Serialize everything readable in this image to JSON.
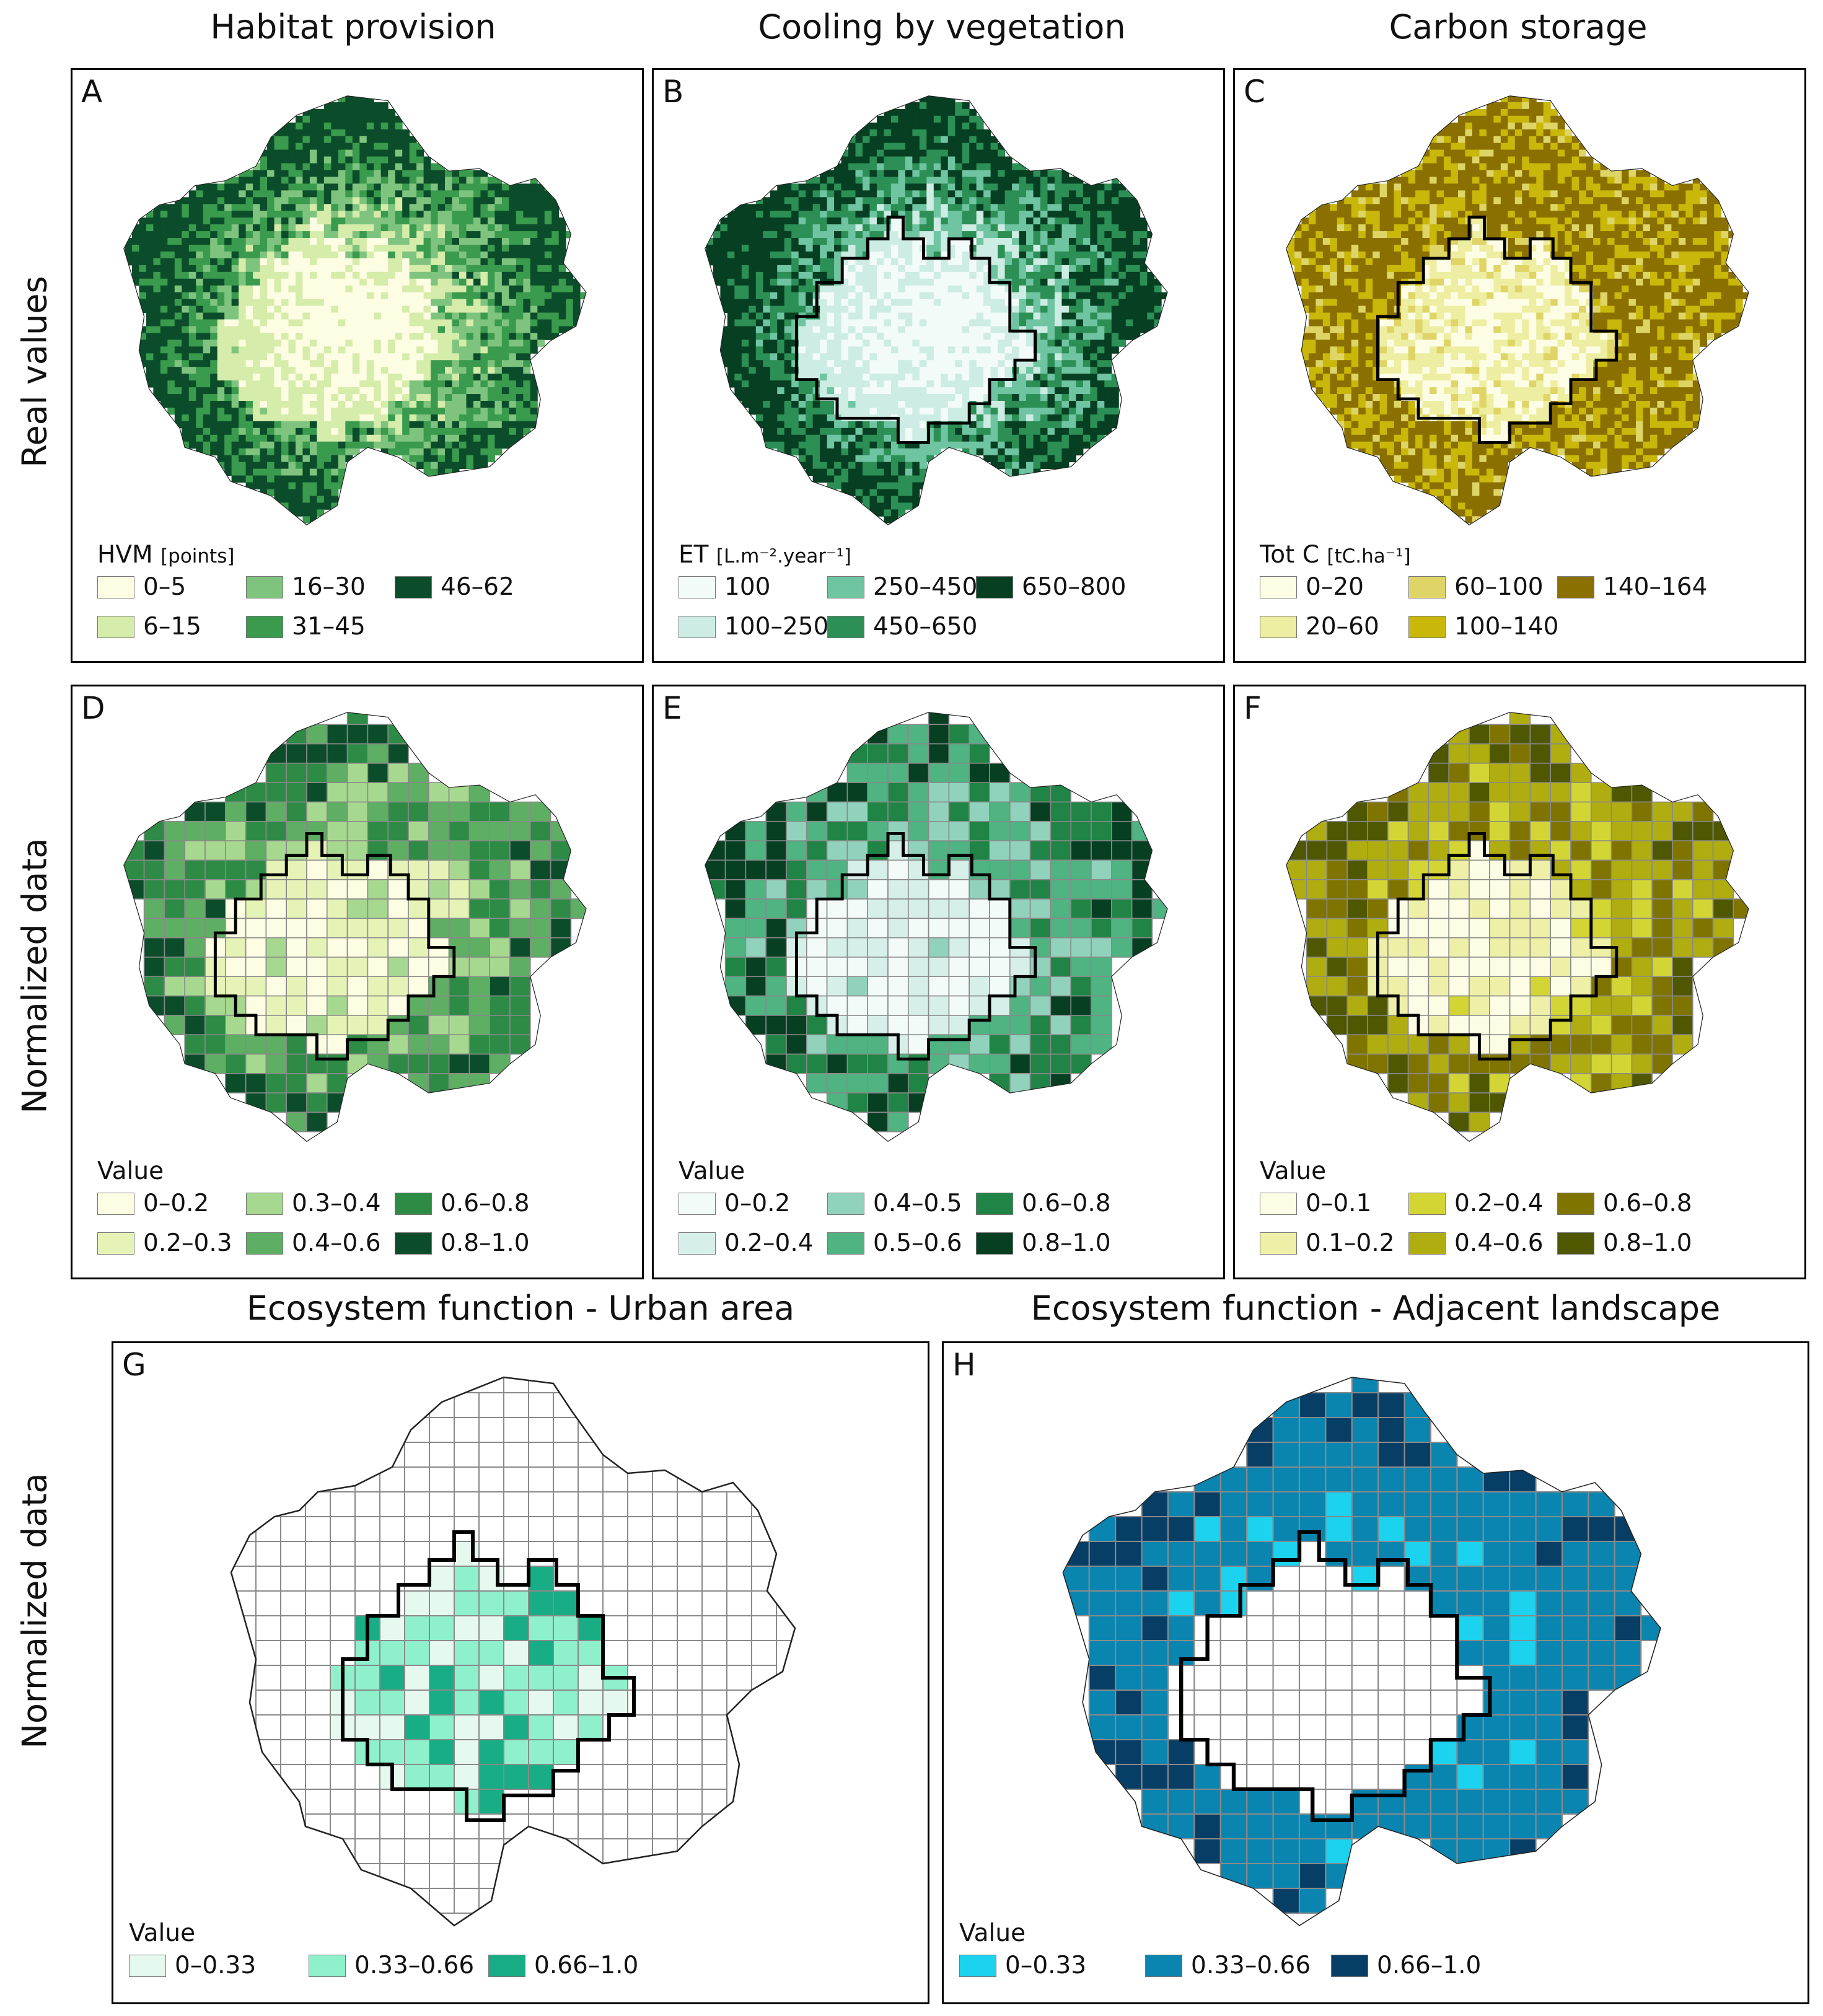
{
  "column_titles": [
    "Habitat provision",
    "Cooling by vegetation",
    "Carbon storage"
  ],
  "row_labels": [
    "Real values",
    "Normalized data",
    "Normalized data"
  ],
  "bottom_titles": [
    "Ecosystem function - Urban area",
    "Ecosystem function - Adjacent landscape"
  ],
  "panels": [
    {
      "letter": "A",
      "legend_title": "HVM",
      "legend_unit": "[points]",
      "boundary": false,
      "grid": false,
      "items": [
        {
          "label": "0–5",
          "color": "#fcfde2"
        },
        {
          "label": "6–15",
          "color": "#d6ecaa"
        },
        {
          "label": "16–30",
          "color": "#7fc47e"
        },
        {
          "label": "31–45",
          "color": "#3a9a4d"
        },
        {
          "label": "46–62",
          "color": "#0b4d2a"
        }
      ]
    },
    {
      "letter": "B",
      "legend_title": "ET",
      "legend_unit": "[L.m⁻².year⁻¹]",
      "boundary": true,
      "grid": false,
      "items": [
        {
          "label": "100",
          "color": "#f2fbf8"
        },
        {
          "label": "100–250",
          "color": "#cdece3"
        },
        {
          "label": "250–450",
          "color": "#6fc4a2"
        },
        {
          "label": "450–650",
          "color": "#2c8f55"
        },
        {
          "label": "650–800",
          "color": "#063f22"
        }
      ]
    },
    {
      "letter": "C",
      "legend_title": "Tot C",
      "legend_unit": "[tC.ha⁻¹]",
      "boundary": true,
      "grid": false,
      "items": [
        {
          "label": "0–20",
          "color": "#fdfde6"
        },
        {
          "label": "20–60",
          "color": "#eeeea2"
        },
        {
          "label": "60–100",
          "color": "#dfd566"
        },
        {
          "label": "100–140",
          "color": "#c9b70a"
        },
        {
          "label": "140–164",
          "color": "#8a7000"
        }
      ]
    },
    {
      "letter": "D",
      "legend_title": "Value",
      "legend_unit": "",
      "boundary": true,
      "grid": true,
      "items": [
        {
          "label": "0–0.2",
          "color": "#fcfde2"
        },
        {
          "label": "0.2–0.3",
          "color": "#e5f3b6"
        },
        {
          "label": "0.3–0.4",
          "color": "#a7d88f"
        },
        {
          "label": "0.4–0.6",
          "color": "#5eae63"
        },
        {
          "label": "0.6–0.8",
          "color": "#2d8b46"
        },
        {
          "label": "0.8–1.0",
          "color": "#0b4d2a"
        }
      ]
    },
    {
      "letter": "E",
      "legend_title": "Value",
      "legend_unit": "",
      "boundary": true,
      "grid": true,
      "items": [
        {
          "label": "0–0.2",
          "color": "#f2fbf8"
        },
        {
          "label": "0.2–0.4",
          "color": "#d7efe9"
        },
        {
          "label": "0.4–0.5",
          "color": "#91d2bd"
        },
        {
          "label": "0.5–0.6",
          "color": "#4fb382"
        },
        {
          "label": "0.6–0.8",
          "color": "#1f8445"
        },
        {
          "label": "0.8–1.0",
          "color": "#063f22"
        }
      ]
    },
    {
      "letter": "F",
      "legend_title": "Value",
      "legend_unit": "",
      "boundary": true,
      "grid": true,
      "items": [
        {
          "label": "0–0.1",
          "color": "#fdfde6"
        },
        {
          "label": "0.1–0.2",
          "color": "#eef0a8"
        },
        {
          "label": "0.2–0.4",
          "color": "#d3d535"
        },
        {
          "label": "0.4–0.6",
          "color": "#b0ad10"
        },
        {
          "label": "0.6–0.8",
          "color": "#7f7400"
        },
        {
          "label": "0.8–1.0",
          "color": "#4f5800"
        }
      ]
    },
    {
      "letter": "G",
      "legend_title": "Value",
      "legend_unit": "",
      "boundary": true,
      "grid": true,
      "items": [
        {
          "label": "0–0.33",
          "color": "#e6f9ee"
        },
        {
          "label": "0.33–0.66",
          "color": "#8ff0cc"
        },
        {
          "label": "0.66–1.0",
          "color": "#18ad84"
        }
      ]
    },
    {
      "letter": "H",
      "legend_title": "Value",
      "legend_unit": "",
      "boundary": true,
      "grid": true,
      "items": [
        {
          "label": "0–0.33",
          "color": "#1bd3ee"
        },
        {
          "label": "0.33–0.66",
          "color": "#0a85b0"
        },
        {
          "label": "0.66–1.0",
          "color": "#073e66"
        }
      ]
    }
  ]
}
